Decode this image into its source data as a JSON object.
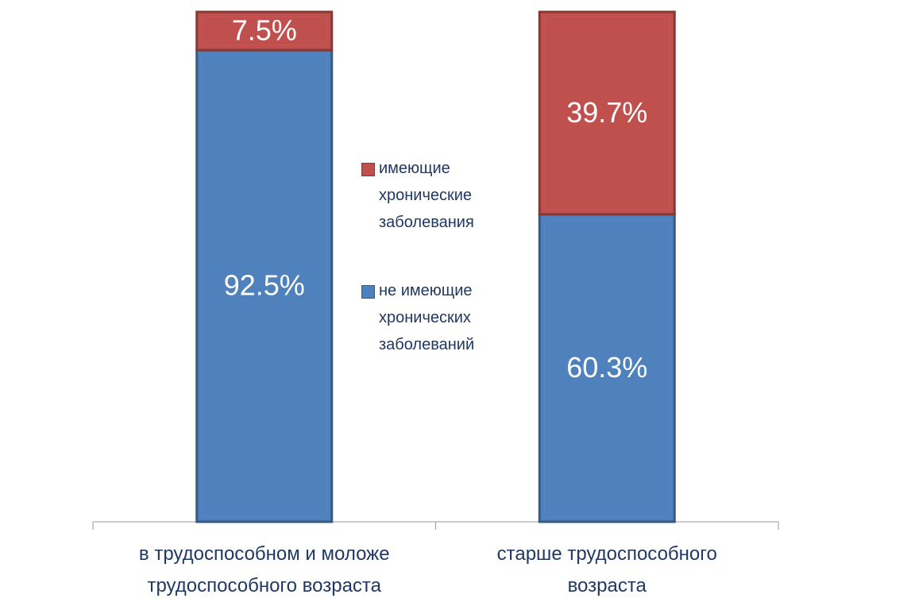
{
  "chart_data": {
    "type": "stacked-bar",
    "categories": [
      "в трудоспособном и моложе трудоспособного возраста",
      "старше трудоспособного возраста"
    ],
    "series": [
      {
        "name": "не имеющие хронических заболеваний",
        "color": "#4f81bd",
        "values": [
          92.5,
          60.3
        ],
        "value_labels": [
          "92.5%",
          "60.3%"
        ]
      },
      {
        "name": "имеющие хронические заболевания",
        "color": "#c0504d",
        "values": [
          7.5,
          39.7
        ],
        "value_labels": [
          "7.5%",
          "39.7%"
        ]
      }
    ],
    "ylim": [
      0,
      100
    ],
    "legend": "center"
  }
}
